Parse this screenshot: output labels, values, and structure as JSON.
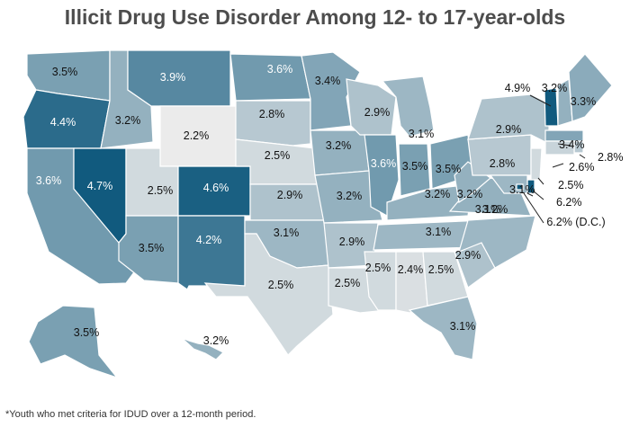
{
  "title": "Illicit Drug Use Disorder Among 12- to 17-year-olds",
  "footnote": "*Youth who met criteria for IDUD over a 12-month period.",
  "color_scale": {
    "min_value": 2.2,
    "max_value": 4.7,
    "low_color": "#ebebeb",
    "high_color": "#115a7e",
    "border_color": "#ffffff"
  },
  "states": [
    {
      "code": "WA",
      "label": "3.5%",
      "value": 3.5
    },
    {
      "code": "OR",
      "label": "4.4%",
      "value": 4.4
    },
    {
      "code": "CA",
      "label": "3.6%",
      "value": 3.6
    },
    {
      "code": "NV",
      "label": "4.7%",
      "value": 4.7
    },
    {
      "code": "ID",
      "label": "3.2%",
      "value": 3.2
    },
    {
      "code": "MT",
      "label": "3.9%",
      "value": 3.9
    },
    {
      "code": "WY",
      "label": "2.2%",
      "value": 2.2
    },
    {
      "code": "UT",
      "label": "2.5%",
      "value": 2.5
    },
    {
      "code": "AZ",
      "label": "3.5%",
      "value": 3.5
    },
    {
      "code": "CO",
      "label": "4.6%",
      "value": 4.6
    },
    {
      "code": "NM",
      "label": "4.2%",
      "value": 4.2
    },
    {
      "code": "ND",
      "label": "3.6%",
      "value": 3.6
    },
    {
      "code": "SD",
      "label": "2.8%",
      "value": 2.8
    },
    {
      "code": "NE",
      "label": "2.5%",
      "value": 2.5
    },
    {
      "code": "KS",
      "label": "2.9%",
      "value": 2.9
    },
    {
      "code": "OK",
      "label": "3.1%",
      "value": 3.1
    },
    {
      "code": "TX",
      "label": "2.5%",
      "value": 2.5
    },
    {
      "code": "MN",
      "label": "3.4%",
      "value": 3.4
    },
    {
      "code": "IA",
      "label": "3.2%",
      "value": 3.2
    },
    {
      "code": "MO",
      "label": "3.2%",
      "value": 3.2
    },
    {
      "code": "AR",
      "label": "2.9%",
      "value": 2.9
    },
    {
      "code": "LA",
      "label": "2.5%",
      "value": 2.5
    },
    {
      "code": "WI",
      "label": "2.9%",
      "value": 2.9
    },
    {
      "code": "IL",
      "label": "3.6%",
      "value": 3.6
    },
    {
      "code": "MI",
      "label": "3.1%",
      "value": 3.1
    },
    {
      "code": "IN",
      "label": "3.5%",
      "value": 3.5
    },
    {
      "code": "OH",
      "label": "3.5%",
      "value": 3.5
    },
    {
      "code": "KY",
      "label": "3.2%",
      "value": 3.2
    },
    {
      "code": "TN",
      "label": "3.1%",
      "value": 3.1
    },
    {
      "code": "MS",
      "label": "2.5%",
      "value": 2.5
    },
    {
      "code": "AL",
      "label": "2.4%",
      "value": 2.4
    },
    {
      "code": "GA",
      "label": "2.5%",
      "value": 2.5
    },
    {
      "code": "FL",
      "label": "3.1%",
      "value": 3.1
    },
    {
      "code": "SC",
      "label": "2.9%",
      "value": 2.9
    },
    {
      "code": "NC",
      "label": "3.1%",
      "value": 3.1
    },
    {
      "code": "VA",
      "label": "3.2%",
      "value": 3.2
    },
    {
      "code": "WV",
      "label": "3.2%",
      "value": 3.2
    },
    {
      "code": "PA",
      "label": "2.8%",
      "value": 2.8
    },
    {
      "code": "NY",
      "label": "2.9%",
      "value": 2.9
    },
    {
      "code": "VT",
      "label": "4.9%",
      "value": 4.9
    },
    {
      "code": "NH",
      "label": "3.2%",
      "value": 3.2
    },
    {
      "code": "ME",
      "label": "3.3%",
      "value": 3.3
    },
    {
      "code": "MA",
      "label": "3.4%",
      "value": 3.4
    },
    {
      "code": "RI",
      "label": "2.8%",
      "value": 2.8
    },
    {
      "code": "CT",
      "label": "2.6%",
      "value": 2.6
    },
    {
      "code": "NJ",
      "label": "2.5%",
      "value": 2.5
    },
    {
      "code": "DE",
      "label": "6.2%",
      "value": 6.2
    },
    {
      "code": "MD",
      "label": "3.1%",
      "value": 3.1
    },
    {
      "code": "DC",
      "label": "6.2% (D.C.)",
      "value": 6.2
    },
    {
      "code": "AK",
      "label": "3.5%",
      "value": 3.5
    },
    {
      "code": "HI",
      "label": "3.2%",
      "value": 3.2
    }
  ]
}
